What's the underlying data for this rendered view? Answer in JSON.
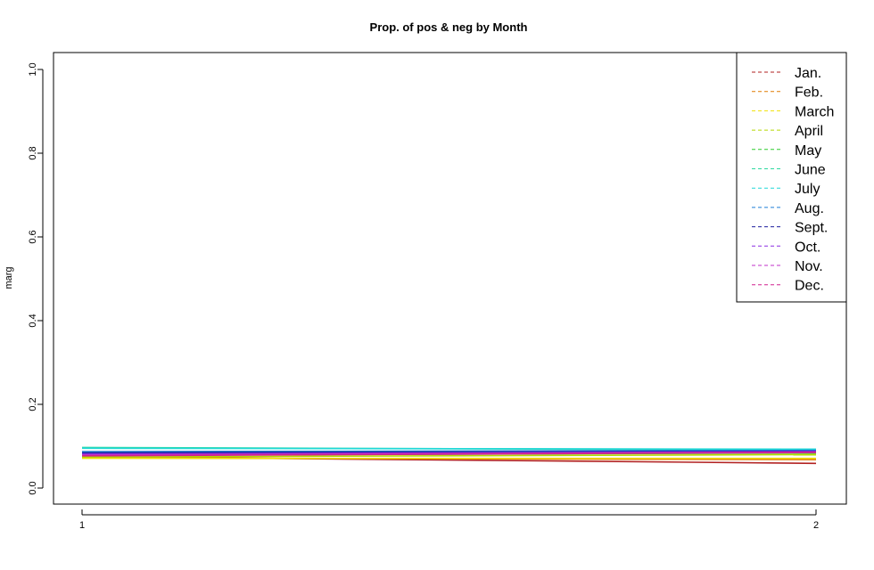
{
  "chart_data": {
    "type": "line",
    "title": "Prop. of pos & neg by Month",
    "xlabel": "",
    "ylabel": "marg",
    "x": [
      1,
      2
    ],
    "x_ticks": [
      "1",
      "2"
    ],
    "y_ticks": [
      "0.0",
      "0.2",
      "0.4",
      "0.6",
      "0.8",
      "1.0"
    ],
    "ylim": [
      0,
      1
    ],
    "grid": false,
    "legend_position": "top-right",
    "legend_line_style": "dashed",
    "series": [
      {
        "name": "Jan.",
        "color": "#b22222",
        "values": [
          0.075,
          0.059
        ]
      },
      {
        "name": "Feb.",
        "color": "#e07b00",
        "values": [
          0.072,
          0.068
        ]
      },
      {
        "name": "March",
        "color": "#f0e000",
        "values": [
          0.071,
          0.071
        ]
      },
      {
        "name": "April",
        "color": "#b5d800",
        "values": [
          0.074,
          0.08
        ]
      },
      {
        "name": "May",
        "color": "#2ecc2e",
        "values": [
          0.078,
          0.084
        ]
      },
      {
        "name": "June",
        "color": "#2ed8a0",
        "values": [
          0.097,
          0.091
        ]
      },
      {
        "name": "July",
        "color": "#20d8d8",
        "values": [
          0.095,
          0.093
        ]
      },
      {
        "name": "Aug.",
        "color": "#1e7fd6",
        "values": [
          0.087,
          0.09
        ]
      },
      {
        "name": "Sept.",
        "color": "#1f1f9f",
        "values": [
          0.084,
          0.088
        ]
      },
      {
        "name": "Oct.",
        "color": "#8a2be2",
        "values": [
          0.081,
          0.087
        ]
      },
      {
        "name": "Nov.",
        "color": "#c030c8",
        "values": [
          0.079,
          0.086
        ]
      },
      {
        "name": "Dec.",
        "color": "#d0208f",
        "values": [
          0.077,
          0.085
        ]
      }
    ]
  }
}
